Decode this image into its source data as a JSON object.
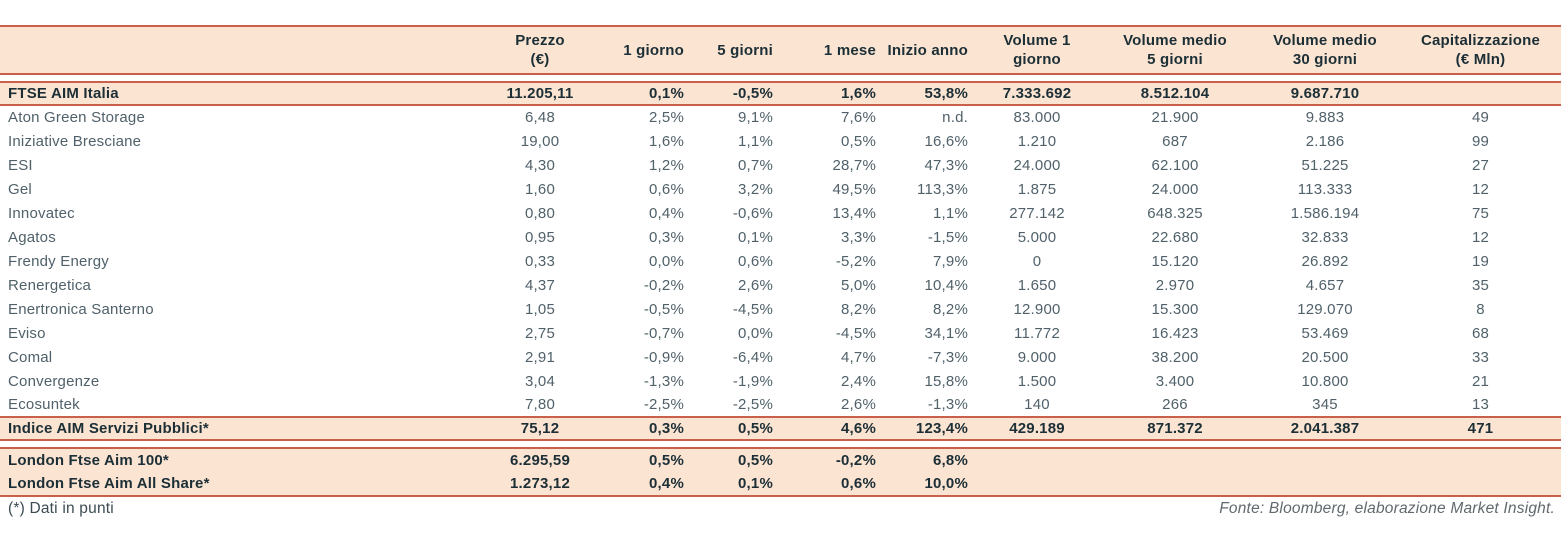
{
  "table": {
    "columns": [
      "",
      "Prezzo\n(€)",
      "1 giorno",
      "5 giorni",
      "1 mese",
      "Inizio anno",
      "Volume 1\ngiorno",
      "Volume medio\n5 giorni",
      "Volume medio\n30 giorni",
      "Capitalizzazione\n(€ Mln)"
    ],
    "rows": [
      {
        "type": "index",
        "name": "FTSE AIM Italia",
        "values": [
          "11.205,11",
          "0,1%",
          "-0,5%",
          "1,6%",
          "53,8%",
          "7.333.692",
          "8.512.104",
          "9.687.710",
          ""
        ]
      },
      {
        "type": "stock",
        "name": "Aton Green Storage",
        "values": [
          "6,48",
          "2,5%",
          "9,1%",
          "7,6%",
          "n.d.",
          "83.000",
          "21.900",
          "9.883",
          "49"
        ]
      },
      {
        "type": "stock",
        "name": "Iniziative Bresciane",
        "values": [
          "19,00",
          "1,6%",
          "1,1%",
          "0,5%",
          "16,6%",
          "1.210",
          "687",
          "2.186",
          "99"
        ]
      },
      {
        "type": "stock",
        "name": "ESI",
        "values": [
          "4,30",
          "1,2%",
          "0,7%",
          "28,7%",
          "47,3%",
          "24.000",
          "62.100",
          "51.225",
          "27"
        ]
      },
      {
        "type": "stock",
        "name": "Gel",
        "values": [
          "1,60",
          "0,6%",
          "3,2%",
          "49,5%",
          "113,3%",
          "1.875",
          "24.000",
          "113.333",
          "12"
        ]
      },
      {
        "type": "stock",
        "name": "Innovatec",
        "values": [
          "0,80",
          "0,4%",
          "-0,6%",
          "13,4%",
          "1,1%",
          "277.142",
          "648.325",
          "1.586.194",
          "75"
        ]
      },
      {
        "type": "stock",
        "name": "Agatos",
        "values": [
          "0,95",
          "0,3%",
          "0,1%",
          "3,3%",
          "-1,5%",
          "5.000",
          "22.680",
          "32.833",
          "12"
        ]
      },
      {
        "type": "stock",
        "name": "Frendy Energy",
        "values": [
          "0,33",
          "0,0%",
          "0,6%",
          "-5,2%",
          "7,9%",
          "0",
          "15.120",
          "26.892",
          "19"
        ]
      },
      {
        "type": "stock",
        "name": "Renergetica",
        "values": [
          "4,37",
          "-0,2%",
          "2,6%",
          "5,0%",
          "10,4%",
          "1.650",
          "2.970",
          "4.657",
          "35"
        ]
      },
      {
        "type": "stock",
        "name": "Enertronica Santerno",
        "values": [
          "1,05",
          "-0,5%",
          "-4,5%",
          "8,2%",
          "8,2%",
          "12.900",
          "15.300",
          "129.070",
          "8"
        ]
      },
      {
        "type": "stock",
        "name": "Eviso",
        "values": [
          "2,75",
          "-0,7%",
          "0,0%",
          "-4,5%",
          "34,1%",
          "11.772",
          "16.423",
          "53.469",
          "68"
        ]
      },
      {
        "type": "stock",
        "name": "Comal",
        "values": [
          "2,91",
          "-0,9%",
          "-6,4%",
          "4,7%",
          "-7,3%",
          "9.000",
          "38.200",
          "20.500",
          "33"
        ]
      },
      {
        "type": "stock",
        "name": "Convergenze",
        "values": [
          "3,04",
          "-1,3%",
          "-1,9%",
          "2,4%",
          "15,8%",
          "1.500",
          "3.400",
          "10.800",
          "21"
        ]
      },
      {
        "type": "stock",
        "name": "Ecosuntek",
        "values": [
          "7,80",
          "-2,5%",
          "-2,5%",
          "2,6%",
          "-1,3%",
          "140",
          "266",
          "345",
          "13"
        ]
      },
      {
        "type": "index",
        "name": "Indice AIM Servizi Pubblici*",
        "values": [
          "75,12",
          "0,3%",
          "0,5%",
          "4,6%",
          "123,4%",
          "429.189",
          "871.372",
          "2.041.387",
          "471"
        ]
      }
    ],
    "london_rows": [
      {
        "name": "London Ftse Aim 100*",
        "values": [
          "6.295,59",
          "0,5%",
          "0,5%",
          "-0,2%",
          "6,8%",
          "",
          "",
          "",
          ""
        ]
      },
      {
        "name": "London Ftse Aim All Share*",
        "values": [
          "1.273,12",
          "0,4%",
          "0,1%",
          "0,6%",
          "10,0%",
          "",
          "",
          "",
          ""
        ]
      }
    ]
  },
  "footer": {
    "note": "(*) Dati in punti",
    "source": "Fonte: Bloomberg, elaborazione Market Insight."
  },
  "colors": {
    "band_background": "#fbe5d2",
    "rule_line": "#c8604c",
    "strong_text": "#1c2e36",
    "body_text": "#50616a",
    "source_text": "#60696d"
  }
}
